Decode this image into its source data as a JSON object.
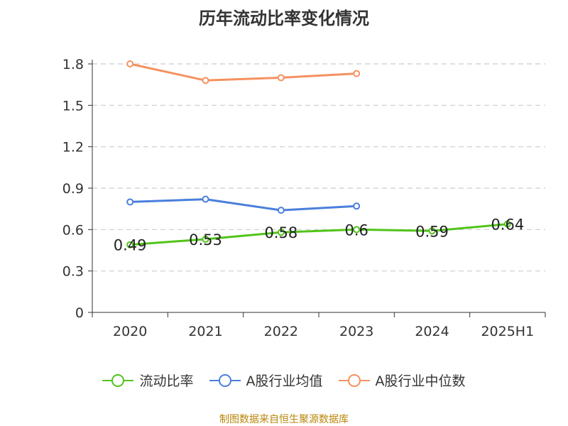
{
  "chart_data": {
    "type": "line",
    "title": "历年流动比率变化情况",
    "categories": [
      "2020",
      "2021",
      "2022",
      "2023",
      "2024",
      "2025H1"
    ],
    "y_ticks": [
      "0",
      "0.3",
      "0.6",
      "0.9",
      "1.2",
      "1.5",
      "1.8"
    ],
    "ylim": [
      0,
      1.8
    ],
    "grid": true,
    "legend_position": "bottom",
    "series": [
      {
        "name": "流动比率",
        "color": "#52c41a",
        "values": [
          0.49,
          0.53,
          0.58,
          0.6,
          0.59,
          0.64
        ],
        "labels": [
          "0.49",
          "0.53",
          "0.58",
          "0.6",
          "0.59",
          "0.64"
        ]
      },
      {
        "name": "A股行业均值",
        "color": "#4a7fdc",
        "values": [
          0.8,
          0.82,
          0.74,
          0.77,
          null,
          null
        ]
      },
      {
        "name": "A股行业中位数",
        "color": "#f59160",
        "values": [
          1.8,
          1.68,
          1.7,
          1.73,
          null,
          null
        ]
      }
    ]
  },
  "source": "制图数据来自恒生聚源数据库"
}
